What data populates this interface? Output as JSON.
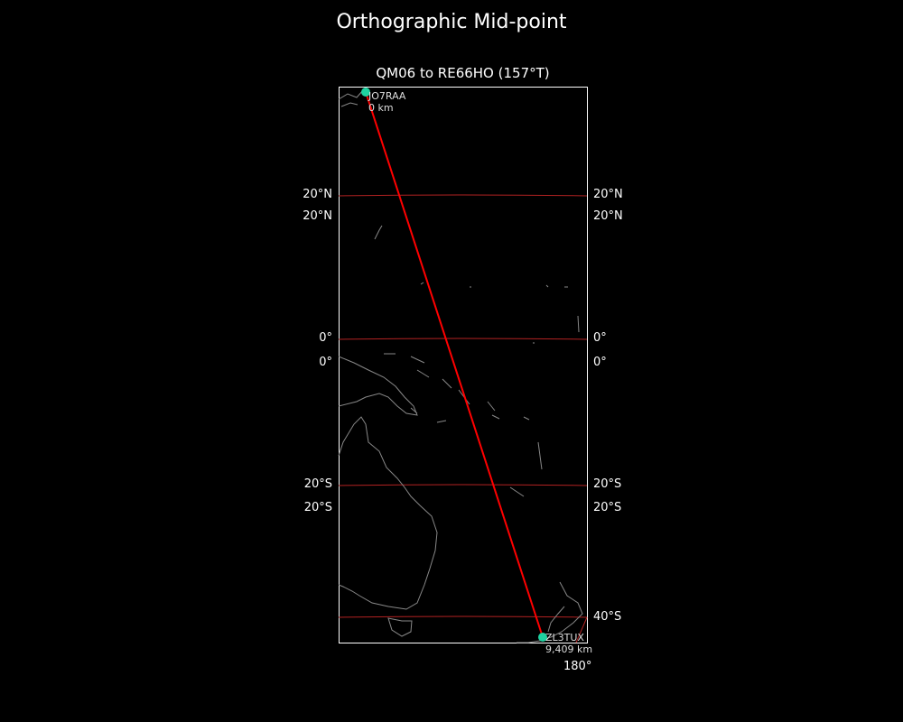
{
  "title": "Orthographic Mid-point",
  "subtitle": "QM06 to RE66HO (157°T)",
  "colors": {
    "background": "#000000",
    "path": "#ff0000",
    "gridline": "#b22222",
    "coast": "#888888",
    "station": "#1fd1a0",
    "frame": "#ffffff"
  },
  "lat_labels_left": [
    "20°N",
    "20°N",
    "0°",
    "0°",
    "20°S",
    "20°S"
  ],
  "lat_labels_right": [
    "20°N",
    "20°N",
    "0°",
    "0°",
    "20°S",
    "20°S",
    "40°S"
  ],
  "lon_labels": [
    "180°"
  ],
  "start": {
    "call": "JO7RAA",
    "distance": "0 km"
  },
  "end": {
    "call": "ZL3TUX",
    "distance": "9,409 km"
  }
}
